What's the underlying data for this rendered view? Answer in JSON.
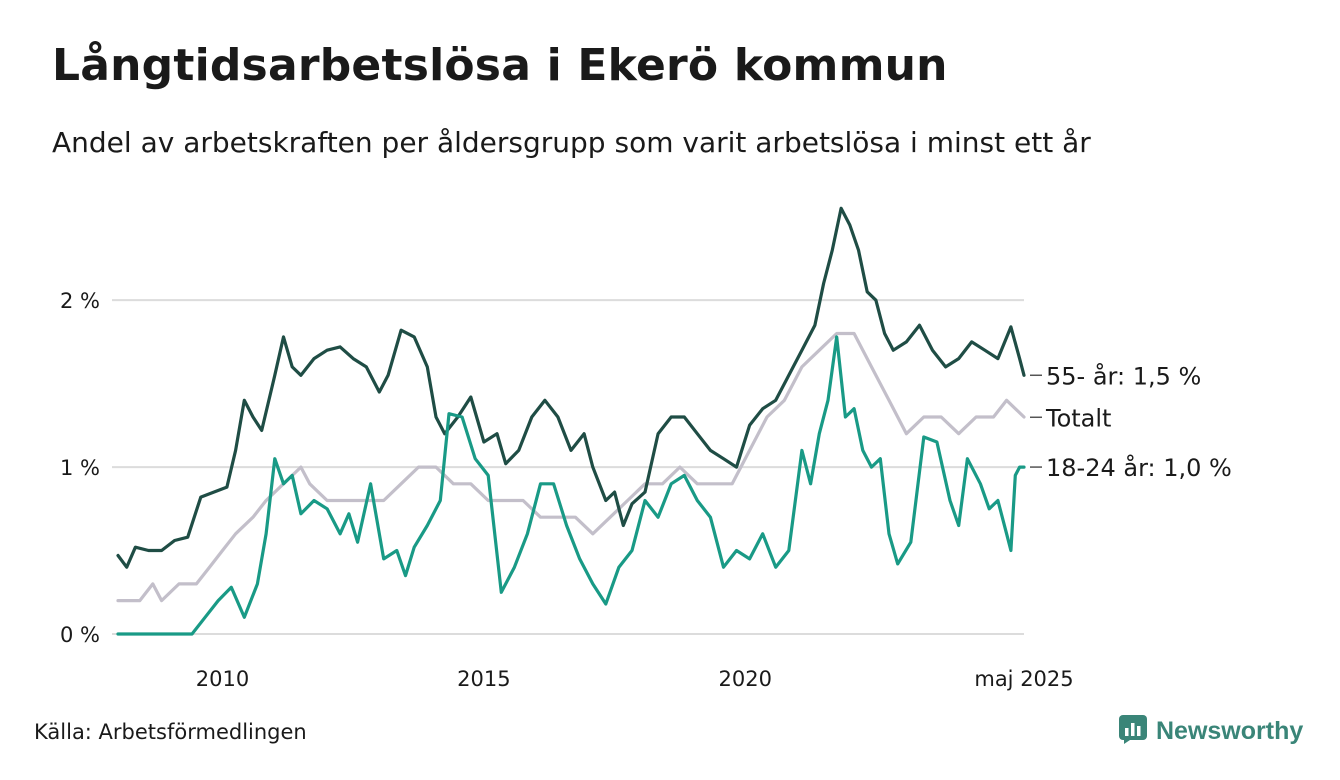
{
  "header": {
    "title": "Långtidsarbetslösa i Ekerö kommun",
    "subtitle": "Andel av arbetskraften per åldersgrupp som varit arbetslösa i minst ett år"
  },
  "footer": {
    "source": "Källa: Arbetsförmedlingen",
    "brand": "Newsworthy",
    "brand_icon": "newsworthy-logo-icon"
  },
  "chart_data": {
    "type": "line",
    "x_start": "2008-01",
    "x_end": "2025-05",
    "y_unit": "%",
    "ylim": [
      0,
      2.6
    ],
    "y_ticks": [
      {
        "value": 0,
        "label": "0 %"
      },
      {
        "value": 1,
        "label": "1 %"
      },
      {
        "value": 2,
        "label": "2 %"
      }
    ],
    "x_ticks": [
      {
        "value": "2010-01",
        "label": "2010"
      },
      {
        "value": "2015-01",
        "label": "2015"
      },
      {
        "value": "2020-01",
        "label": "2020"
      },
      {
        "value": "2025-05",
        "label": "maj 2025"
      }
    ],
    "grid": "horizontal",
    "legend": "end-of-line labels",
    "series": [
      {
        "key": "totalt",
        "name": "Totalt",
        "end_label": "Totalt",
        "color": "#c3bfca",
        "points": [
          [
            "2008-01",
            0.2
          ],
          [
            "2008-06",
            0.2
          ],
          [
            "2008-09",
            0.3
          ],
          [
            "2008-11",
            0.2
          ],
          [
            "2009-03",
            0.3
          ],
          [
            "2009-07",
            0.3
          ],
          [
            "2009-10",
            0.4
          ],
          [
            "2010-01",
            0.5
          ],
          [
            "2010-04",
            0.6
          ],
          [
            "2010-08",
            0.7
          ],
          [
            "2010-11",
            0.8
          ],
          [
            "2011-03",
            0.9
          ],
          [
            "2011-07",
            1.0
          ],
          [
            "2011-09",
            0.9
          ],
          [
            "2012-01",
            0.8
          ],
          [
            "2012-05",
            0.8
          ],
          [
            "2012-10",
            0.8
          ],
          [
            "2013-02",
            0.8
          ],
          [
            "2013-06",
            0.9
          ],
          [
            "2013-10",
            1.0
          ],
          [
            "2014-02",
            1.0
          ],
          [
            "2014-06",
            0.9
          ],
          [
            "2014-10",
            0.9
          ],
          [
            "2015-02",
            0.8
          ],
          [
            "2015-06",
            0.8
          ],
          [
            "2015-10",
            0.8
          ],
          [
            "2016-02",
            0.7
          ],
          [
            "2016-06",
            0.7
          ],
          [
            "2016-10",
            0.7
          ],
          [
            "2017-02",
            0.6
          ],
          [
            "2017-06",
            0.7
          ],
          [
            "2017-10",
            0.8
          ],
          [
            "2018-02",
            0.9
          ],
          [
            "2018-06",
            0.9
          ],
          [
            "2018-10",
            1.0
          ],
          [
            "2019-02",
            0.9
          ],
          [
            "2019-06",
            0.9
          ],
          [
            "2019-10",
            0.9
          ],
          [
            "2020-02",
            1.1
          ],
          [
            "2020-06",
            1.3
          ],
          [
            "2020-10",
            1.4
          ],
          [
            "2021-02",
            1.6
          ],
          [
            "2021-06",
            1.7
          ],
          [
            "2021-10",
            1.8
          ],
          [
            "2022-02",
            1.8
          ],
          [
            "2022-06",
            1.6
          ],
          [
            "2022-10",
            1.4
          ],
          [
            "2023-02",
            1.2
          ],
          [
            "2023-06",
            1.3
          ],
          [
            "2023-10",
            1.3
          ],
          [
            "2024-02",
            1.2
          ],
          [
            "2024-06",
            1.3
          ],
          [
            "2024-10",
            1.3
          ],
          [
            "2025-01",
            1.4
          ],
          [
            "2025-05",
            1.3
          ]
        ]
      },
      {
        "key": "aged55",
        "name": "55- år",
        "end_label": "55- år: 1,5 %",
        "color": "#1f4d45",
        "points": [
          [
            "2008-01",
            0.47
          ],
          [
            "2008-03",
            0.4
          ],
          [
            "2008-05",
            0.52
          ],
          [
            "2008-08",
            0.5
          ],
          [
            "2008-11",
            0.5
          ],
          [
            "2009-02",
            0.56
          ],
          [
            "2009-05",
            0.58
          ],
          [
            "2009-08",
            0.82
          ],
          [
            "2009-11",
            0.85
          ],
          [
            "2010-02",
            0.88
          ],
          [
            "2010-04",
            1.1
          ],
          [
            "2010-06",
            1.4
          ],
          [
            "2010-08",
            1.3
          ],
          [
            "2010-10",
            1.22
          ],
          [
            "2011-01",
            1.55
          ],
          [
            "2011-03",
            1.78
          ],
          [
            "2011-05",
            1.6
          ],
          [
            "2011-07",
            1.55
          ],
          [
            "2011-10",
            1.65
          ],
          [
            "2012-01",
            1.7
          ],
          [
            "2012-04",
            1.72
          ],
          [
            "2012-07",
            1.65
          ],
          [
            "2012-10",
            1.6
          ],
          [
            "2013-01",
            1.45
          ],
          [
            "2013-03",
            1.55
          ],
          [
            "2013-06",
            1.82
          ],
          [
            "2013-09",
            1.78
          ],
          [
            "2013-12",
            1.6
          ],
          [
            "2014-02",
            1.3
          ],
          [
            "2014-04",
            1.2
          ],
          [
            "2014-07",
            1.3
          ],
          [
            "2014-10",
            1.42
          ],
          [
            "2015-01",
            1.15
          ],
          [
            "2015-04",
            1.2
          ],
          [
            "2015-06",
            1.02
          ],
          [
            "2015-09",
            1.1
          ],
          [
            "2015-12",
            1.3
          ],
          [
            "2016-03",
            1.4
          ],
          [
            "2016-06",
            1.3
          ],
          [
            "2016-09",
            1.1
          ],
          [
            "2016-12",
            1.2
          ],
          [
            "2017-02",
            1.0
          ],
          [
            "2017-05",
            0.8
          ],
          [
            "2017-07",
            0.85
          ],
          [
            "2017-09",
            0.65
          ],
          [
            "2017-11",
            0.78
          ],
          [
            "2018-02",
            0.85
          ],
          [
            "2018-05",
            1.2
          ],
          [
            "2018-08",
            1.3
          ],
          [
            "2018-11",
            1.3
          ],
          [
            "2019-02",
            1.2
          ],
          [
            "2019-05",
            1.1
          ],
          [
            "2019-08",
            1.05
          ],
          [
            "2019-11",
            1.0
          ],
          [
            "2020-02",
            1.25
          ],
          [
            "2020-05",
            1.35
          ],
          [
            "2020-08",
            1.4
          ],
          [
            "2020-11",
            1.55
          ],
          [
            "2021-02",
            1.7
          ],
          [
            "2021-05",
            1.85
          ],
          [
            "2021-07",
            2.1
          ],
          [
            "2021-09",
            2.3
          ],
          [
            "2021-11",
            2.55
          ],
          [
            "2022-01",
            2.45
          ],
          [
            "2022-03",
            2.3
          ],
          [
            "2022-05",
            2.05
          ],
          [
            "2022-07",
            2.0
          ],
          [
            "2022-09",
            1.8
          ],
          [
            "2022-11",
            1.7
          ],
          [
            "2023-02",
            1.75
          ],
          [
            "2023-05",
            1.85
          ],
          [
            "2023-08",
            1.7
          ],
          [
            "2023-11",
            1.6
          ],
          [
            "2024-02",
            1.65
          ],
          [
            "2024-05",
            1.75
          ],
          [
            "2024-08",
            1.7
          ],
          [
            "2024-11",
            1.65
          ],
          [
            "2025-02",
            1.84
          ],
          [
            "2025-04",
            1.65
          ],
          [
            "2025-05",
            1.55
          ]
        ]
      },
      {
        "key": "aged18_24",
        "name": "18-24 år",
        "end_label": "18-24 år: 1,0 %",
        "color": "#199a86",
        "points": [
          [
            "2008-01",
            0.0
          ],
          [
            "2009-06",
            0.0
          ],
          [
            "2009-09",
            0.1
          ],
          [
            "2009-12",
            0.2
          ],
          [
            "2010-03",
            0.28
          ],
          [
            "2010-06",
            0.1
          ],
          [
            "2010-09",
            0.3
          ],
          [
            "2010-11",
            0.6
          ],
          [
            "2011-01",
            1.05
          ],
          [
            "2011-03",
            0.9
          ],
          [
            "2011-05",
            0.95
          ],
          [
            "2011-07",
            0.72
          ],
          [
            "2011-10",
            0.8
          ],
          [
            "2012-01",
            0.75
          ],
          [
            "2012-04",
            0.6
          ],
          [
            "2012-06",
            0.72
          ],
          [
            "2012-08",
            0.55
          ],
          [
            "2012-11",
            0.9
          ],
          [
            "2013-02",
            0.45
          ],
          [
            "2013-05",
            0.5
          ],
          [
            "2013-07",
            0.35
          ],
          [
            "2013-09",
            0.52
          ],
          [
            "2013-12",
            0.65
          ],
          [
            "2014-03",
            0.8
          ],
          [
            "2014-05",
            1.32
          ],
          [
            "2014-08",
            1.3
          ],
          [
            "2014-11",
            1.05
          ],
          [
            "2015-02",
            0.95
          ],
          [
            "2015-05",
            0.25
          ],
          [
            "2015-08",
            0.4
          ],
          [
            "2015-11",
            0.6
          ],
          [
            "2016-02",
            0.9
          ],
          [
            "2016-05",
            0.9
          ],
          [
            "2016-08",
            0.65
          ],
          [
            "2016-11",
            0.45
          ],
          [
            "2017-02",
            0.3
          ],
          [
            "2017-05",
            0.18
          ],
          [
            "2017-08",
            0.4
          ],
          [
            "2017-11",
            0.5
          ],
          [
            "2018-02",
            0.8
          ],
          [
            "2018-05",
            0.7
          ],
          [
            "2018-08",
            0.9
          ],
          [
            "2018-11",
            0.95
          ],
          [
            "2019-02",
            0.8
          ],
          [
            "2019-05",
            0.7
          ],
          [
            "2019-08",
            0.4
          ],
          [
            "2019-11",
            0.5
          ],
          [
            "2020-02",
            0.45
          ],
          [
            "2020-05",
            0.6
          ],
          [
            "2020-08",
            0.4
          ],
          [
            "2020-11",
            0.5
          ],
          [
            "2021-02",
            1.1
          ],
          [
            "2021-04",
            0.9
          ],
          [
            "2021-06",
            1.2
          ],
          [
            "2021-08",
            1.4
          ],
          [
            "2021-10",
            1.78
          ],
          [
            "2021-12",
            1.3
          ],
          [
            "2022-02",
            1.35
          ],
          [
            "2022-04",
            1.1
          ],
          [
            "2022-06",
            1.0
          ],
          [
            "2022-08",
            1.05
          ],
          [
            "2022-10",
            0.6
          ],
          [
            "2022-12",
            0.42
          ],
          [
            "2023-03",
            0.55
          ],
          [
            "2023-06",
            1.18
          ],
          [
            "2023-09",
            1.15
          ],
          [
            "2023-12",
            0.8
          ],
          [
            "2024-02",
            0.65
          ],
          [
            "2024-04",
            1.05
          ],
          [
            "2024-07",
            0.9
          ],
          [
            "2024-09",
            0.75
          ],
          [
            "2024-11",
            0.8
          ],
          [
            "2025-01",
            0.6
          ],
          [
            "2025-02",
            0.5
          ],
          [
            "2025-03",
            0.95
          ],
          [
            "2025-04",
            1.0
          ],
          [
            "2025-05",
            1.0
          ]
        ]
      }
    ]
  }
}
